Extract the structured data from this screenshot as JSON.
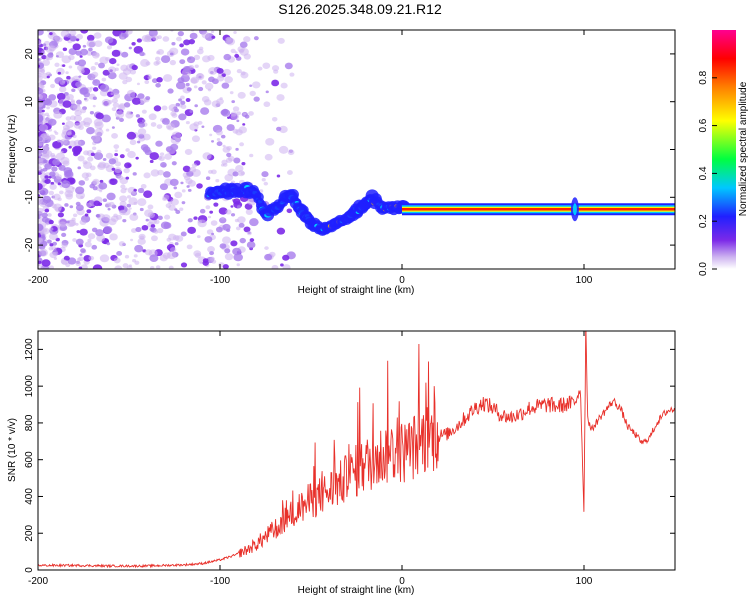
{
  "title": "S126.2025.348.09.21.R12",
  "chart_data": [
    {
      "type": "heatmap",
      "xlabel": "Height of straight line (km)",
      "ylabel": "Frequency (Hz)",
      "xlim": [
        -200,
        150
      ],
      "ylim": [
        -25,
        25
      ],
      "x_ticks": [
        -200,
        -100,
        0,
        100
      ],
      "y_ticks": [
        20,
        10,
        0,
        -10,
        -20
      ],
      "colorbar": {
        "label": "Normalized spectral amplitude",
        "range": [
          0,
          1
        ],
        "ticks": [
          "0.0",
          "0.2",
          "0.4",
          "0.6",
          "0.8"
        ],
        "colors": [
          "#ffffff",
          "#cdb3f0",
          "#7c2ae8",
          "#2020ff",
          "#00c8ff",
          "#00ff40",
          "#ffff00",
          "#ff8000",
          "#ff0000",
          "#ff0090"
        ]
      },
      "noise_region": {
        "x_range": [
          -200,
          -85
        ],
        "freq_range": [
          -25,
          25
        ]
      },
      "carrier_track": [
        {
          "x": -106,
          "freq": -9.5
        },
        {
          "x": -95,
          "freq": -8.5
        },
        {
          "x": -82,
          "freq": -8.5
        },
        {
          "x": -74,
          "freq": -13.5
        },
        {
          "x": -68,
          "freq": -11.5
        },
        {
          "x": -62,
          "freq": -9.0
        },
        {
          "x": -56,
          "freq": -12.0
        },
        {
          "x": -50,
          "freq": -15.5
        },
        {
          "x": -44,
          "freq": -17.0
        },
        {
          "x": -38,
          "freq": -16.0
        },
        {
          "x": -30,
          "freq": -14.0
        },
        {
          "x": -22,
          "freq": -12.0
        },
        {
          "x": -17,
          "freq": -10.0
        },
        {
          "x": -10,
          "freq": -12.5
        },
        {
          "x": 0,
          "freq": -12.5
        },
        {
          "x": 20,
          "freq": -12.5
        },
        {
          "x": 60,
          "freq": -12.5
        },
        {
          "x": 95,
          "freq": -12.5
        },
        {
          "x": 150,
          "freq": -12.5
        }
      ]
    },
    {
      "type": "line",
      "xlabel": "Height of straight line (km)",
      "ylabel": "SNR (10 * v/v)",
      "xlim": [
        -200,
        150
      ],
      "ylim": [
        0,
        1300
      ],
      "x_ticks": [
        -200,
        -100,
        0,
        100
      ],
      "y_ticks": [
        0,
        200,
        400,
        600,
        800,
        1000,
        1200
      ],
      "color": "#e8302a",
      "series": [
        {
          "name": "SNR",
          "x": [
            -200,
            -180,
            -160,
            -140,
            -120,
            -110,
            -100,
            -92,
            -85,
            -80,
            -75,
            -70,
            -66,
            -62,
            -58,
            -54,
            -50,
            -45,
            -40,
            -35,
            -30,
            -25,
            -20,
            -15,
            -10,
            -5,
            0,
            5,
            10,
            15,
            20,
            25,
            30,
            35,
            40,
            45,
            50,
            55,
            60,
            65,
            70,
            75,
            80,
            85,
            90,
            95,
            98,
            100,
            101,
            102,
            104,
            108,
            112,
            116,
            120,
            124,
            128,
            132,
            136,
            140,
            145,
            150
          ],
          "y": [
            25,
            25,
            22,
            22,
            28,
            35,
            55,
            80,
            110,
            140,
            180,
            220,
            260,
            290,
            320,
            350,
            380,
            400,
            430,
            460,
            500,
            540,
            570,
            600,
            630,
            650,
            640,
            660,
            700,
            720,
            730,
            740,
            780,
            830,
            880,
            910,
            880,
            840,
            830,
            850,
            880,
            890,
            900,
            890,
            900,
            910,
            1000,
            300,
            1350,
            830,
            760,
            820,
            870,
            920,
            880,
            780,
            740,
            690,
            720,
            800,
            860,
            880
          ]
        }
      ]
    }
  ]
}
